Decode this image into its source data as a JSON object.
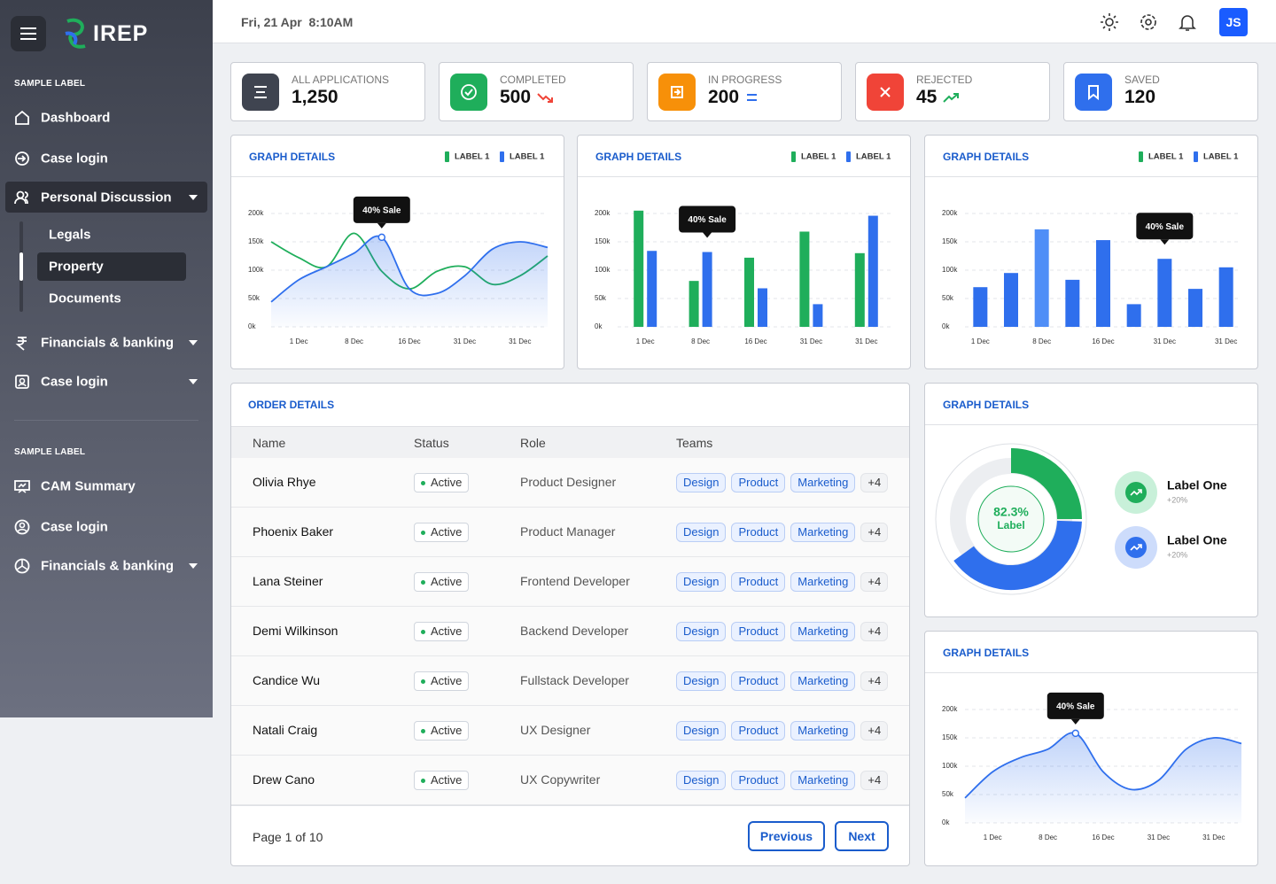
{
  "header": {
    "logo": "IREP",
    "datetime": "Fri, 21 Apr  8:10AM",
    "avatar": "JS"
  },
  "sidebar": {
    "sections": [
      {
        "label": "SAMPLE LABEL",
        "items": [
          "Dashboard",
          "Case login",
          "Personal Discussion",
          "Financials & banking",
          "Case login"
        ],
        "subitems": [
          "Legals",
          "Property",
          "Documents"
        ]
      },
      {
        "label": "SAMPLE LABEL",
        "items": [
          "CAM Summary",
          "Case login",
          "Financials & banking"
        ]
      }
    ]
  },
  "stats": [
    {
      "label": "ALL APPLICATIONS",
      "value": "1,250",
      "color": "#3f4450"
    },
    {
      "label": "COMPLETED",
      "value": "500",
      "color": "#1fae5b",
      "trend": "down"
    },
    {
      "label": "IN PROGRESS",
      "value": "200",
      "color": "#f79009",
      "trend": "flat"
    },
    {
      "label": "REJECTED",
      "value": "45",
      "color": "#f04438",
      "trend": "up"
    },
    {
      "label": "SAVED",
      "value": "120",
      "color": "#2f6fed"
    }
  ],
  "chart_data": [
    {
      "type": "line",
      "title": "GRAPH DETAILS",
      "grid": true,
      "categories": [
        null,
        "1 Dec",
        null,
        "8 Dec",
        null,
        "16 Dec",
        null,
        "31 Dec",
        null,
        "31 Dec",
        null
      ],
      "series": [
        {
          "name": "LABEL 1",
          "color": "#1fae5b",
          "values": [
            150000,
            122000,
            106000,
            165000,
            98000,
            67000,
            98000,
            106000,
            75000,
            90000,
            125000
          ]
        },
        {
          "name": "LABEL 1",
          "color": "#2f6fed",
          "area": true,
          "values": [
            44000,
            83000,
            106000,
            130000,
            158000,
            67000,
            59000,
            90000,
            137000,
            150000,
            140000
          ]
        }
      ],
      "ylim": [
        0,
        200000
      ],
      "yticks": [
        {
          "value": 0,
          "label": "0k"
        },
        {
          "value": 50000,
          "label": "50k"
        },
        {
          "value": 100000,
          "label": "100k"
        },
        {
          "value": 150000,
          "label": "150k"
        },
        {
          "value": 200000,
          "label": "200k"
        }
      ],
      "annotation": {
        "text": "40% Sale",
        "series": 1,
        "index": 4
      }
    },
    {
      "type": "bar",
      "title": "GRAPH DETAILS",
      "grid": true,
      "categories": [
        "1 Dec",
        "8 Dec",
        "16 Dec",
        "31 Dec",
        "31 Dec"
      ],
      "series": [
        {
          "name": "LABEL 1",
          "color": "#1fae5b",
          "values": [
            205000,
            81000,
            122000,
            168000,
            130000
          ]
        },
        {
          "name": "LABEL 1",
          "color": "#2f6fed",
          "values": [
            134000,
            132000,
            68000,
            40000,
            196000
          ]
        }
      ],
      "ylim": [
        0,
        200000
      ],
      "yticks": [
        {
          "value": 0,
          "label": "0k"
        },
        {
          "value": 50000,
          "label": "50k"
        },
        {
          "value": 100000,
          "label": "100k"
        },
        {
          "value": 150000,
          "label": "150k"
        },
        {
          "value": 200000,
          "label": "200k"
        }
      ],
      "annotation": {
        "text": "40% Sale",
        "series": 1,
        "index": 1
      }
    },
    {
      "type": "bar",
      "title": "GRAPH DETAILS",
      "grid": true,
      "legend": [
        {
          "name": "LABEL 1",
          "color": "#1fae5b"
        },
        {
          "name": "LABEL 1",
          "color": "#2f6fed"
        }
      ],
      "categories": [
        "1 Dec",
        null,
        "8 Dec",
        null,
        "16 Dec",
        null,
        "31 Dec",
        null,
        "31 Dec"
      ],
      "values": [
        70000,
        95000,
        172000,
        83000,
        153000,
        40000,
        120000,
        67000,
        105000
      ],
      "colors": [
        "#2f6fed",
        "#2f6fed",
        "#4f8ef7",
        "#2f6fed",
        "#2f6fed",
        "#2f6fed",
        "#2f6fed",
        "#2f6fed",
        "#2f6fed"
      ],
      "ylim": [
        0,
        200000
      ],
      "yticks": [
        {
          "value": 0,
          "label": "0k"
        },
        {
          "value": 50000,
          "label": "50k"
        },
        {
          "value": 100000,
          "label": "100k"
        },
        {
          "value": 150000,
          "label": "150k"
        },
        {
          "value": 200000,
          "label": "200k"
        }
      ],
      "annotation": {
        "text": "40% Sale",
        "index": 6
      }
    },
    {
      "type": "donut",
      "title": "GRAPH DETAILS",
      "center_value": "82.3%",
      "center_label": "Label",
      "labels": [
        "Label One",
        "Label One"
      ],
      "changes": [
        "+20%",
        "+20%"
      ],
      "values": [
        25,
        40
      ],
      "colors": [
        "#1fae5b",
        "#2f6fed"
      ]
    },
    {
      "type": "line",
      "title": "GRAPH DETAILS",
      "grid": true,
      "area": true,
      "color": "#2f6fed",
      "categories": [
        null,
        "1 Dec",
        null,
        "8 Dec",
        null,
        "16 Dec",
        null,
        "31 Dec",
        null,
        "31 Dec",
        null
      ],
      "values": [
        44000,
        90000,
        115000,
        130000,
        158000,
        90000,
        59000,
        75000,
        130000,
        150000,
        140000
      ],
      "ylim": [
        0,
        200000
      ],
      "yticks": [
        {
          "value": 0,
          "label": "0k"
        },
        {
          "value": 50000,
          "label": "50k"
        },
        {
          "value": 100000,
          "label": "100k"
        },
        {
          "value": 150000,
          "label": "150k"
        },
        {
          "value": 200000,
          "label": "200k"
        }
      ],
      "annotation": {
        "text": "40% Sale",
        "index": 4
      }
    }
  ],
  "orders": {
    "title": "ORDER DETAILS",
    "columns": [
      "Name",
      "Status",
      "Role",
      "Teams"
    ],
    "rows": [
      [
        "Olivia Rhye",
        "Active",
        "Product Designer",
        [
          "Design",
          "Product",
          "Marketing",
          "+4"
        ]
      ],
      [
        "Phoenix Baker",
        "Active",
        "Product Manager",
        [
          "Design",
          "Product",
          "Marketing",
          "+4"
        ]
      ],
      [
        "Lana Steiner",
        "Active",
        "Frontend Developer",
        [
          "Design",
          "Product",
          "Marketing",
          "+4"
        ]
      ],
      [
        "Demi Wilkinson",
        "Active",
        "Backend Developer",
        [
          "Design",
          "Product",
          "Marketing",
          "+4"
        ]
      ],
      [
        "Candice Wu",
        "Active",
        "Fullstack Developer",
        [
          "Design",
          "Product",
          "Marketing",
          "+4"
        ]
      ],
      [
        "Natali Craig",
        "Active",
        "UX Designer",
        [
          "Design",
          "Product",
          "Marketing",
          "+4"
        ]
      ],
      [
        "Drew Cano",
        "Active",
        "UX Copywriter",
        [
          "Design",
          "Product",
          "Marketing",
          "+4"
        ]
      ]
    ],
    "page": "Page 1 of 10",
    "previous": "Previous",
    "next": "Next"
  }
}
